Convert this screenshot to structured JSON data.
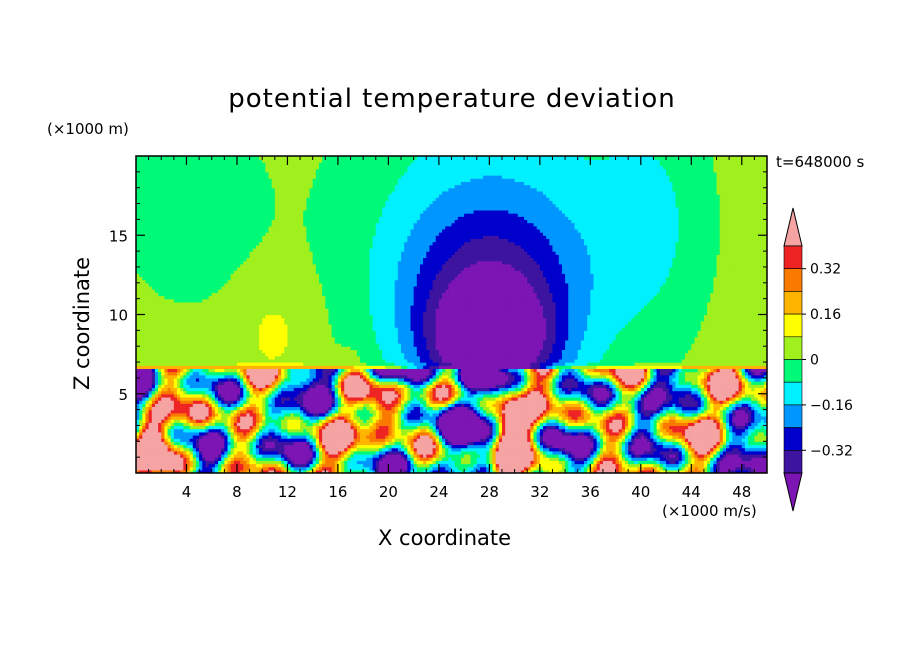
{
  "chart_data": {
    "type": "heatmap",
    "title": "potential temperature deviation",
    "xlabel": "X coordinate",
    "ylabel": "Z coordinate",
    "x_unit": "(×1000 m/s)",
    "y_unit": "(×1000 m)",
    "time_label": "t=648000 s",
    "xlim": [
      0,
      50
    ],
    "ylim": [
      0,
      20
    ],
    "x_ticks": [
      4,
      8,
      12,
      16,
      20,
      24,
      28,
      32,
      36,
      40,
      44,
      48
    ],
    "y_ticks": [
      5,
      10,
      15
    ],
    "colorbar": {
      "ticks": [
        0.32,
        0.16,
        0,
        -0.16,
        -0.32
      ],
      "tick_labels": [
        "0.32",
        "0.16",
        "0",
        "−0.16",
        "−0.32"
      ],
      "levels": [
        0.4,
        0.32,
        0.24,
        0.16,
        0.08,
        0,
        -0.08,
        -0.16,
        -0.24,
        -0.32,
        -0.4
      ],
      "colors": [
        "#f5a3a3",
        "#ee2424",
        "#fa7a00",
        "#ffb400",
        "#ffff00",
        "#a0f01e",
        "#00fa78",
        "#00f0ff",
        "#0096ff",
        "#0000cd",
        "#3c14a0",
        "#7d14b4"
      ],
      "extend": "both"
    },
    "features": {
      "inversion_height": 6.6,
      "upper_background": 0.04,
      "cold_anomaly_center": [
        28,
        8
      ],
      "warm_anomaly_center": [
        11,
        9
      ],
      "grid": false
    }
  }
}
